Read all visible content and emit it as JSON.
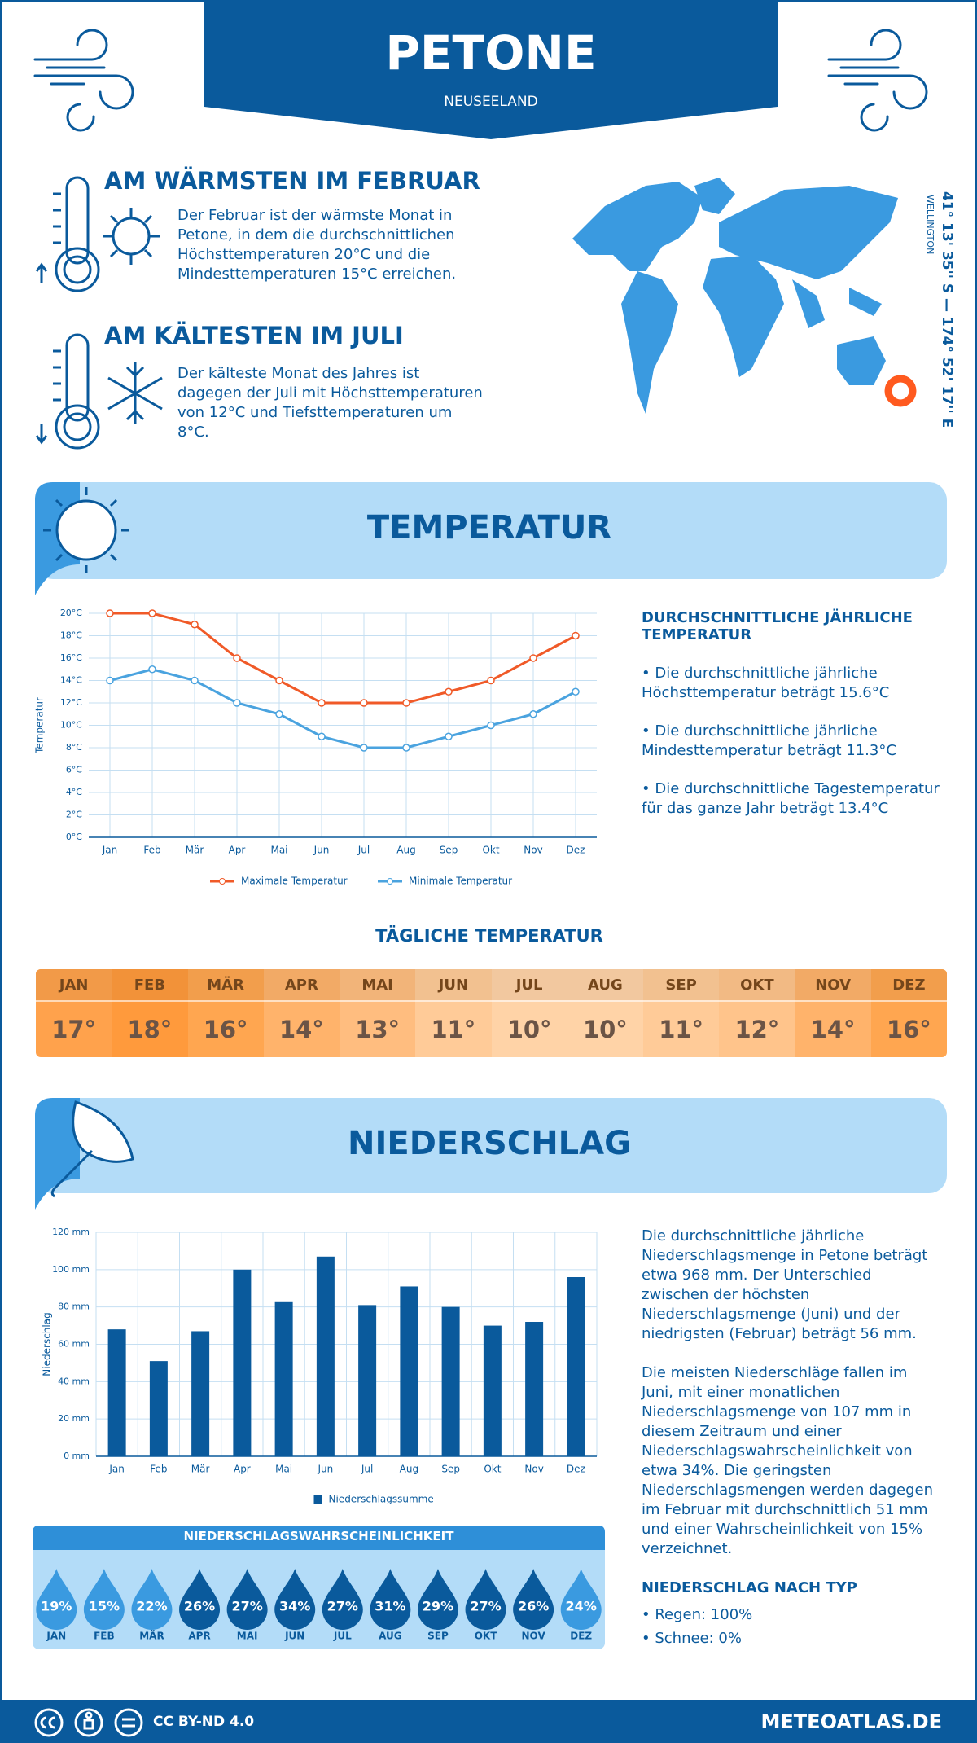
{
  "header": {
    "title": "PETONE",
    "subtitle": "NEUSEELAND"
  },
  "warmest": {
    "title": "AM WÄRMSTEN IM FEBRUAR",
    "text": "Der Februar ist der wärmste Monat in Petone, in dem die durchschnittlichen Höchsttemperaturen 20°C und die Mindesttemperaturen 15°C erreichen."
  },
  "coldest": {
    "title": "AM KÄLTESTEN IM JULI",
    "text": "Der kälteste Monat des Jahres ist dagegen der Juli mit Höchsttemperaturen von 12°C und Tiefsttemperaturen um 8°C."
  },
  "map": {
    "coordinates": "41° 13' 35'' S — 174° 52' 17'' E",
    "region": "WELLINGTON"
  },
  "temperature_section": {
    "title": "TEMPERATUR"
  },
  "chart_data": [
    {
      "type": "line",
      "y_label": "Temperatur",
      "categories": [
        "Jan",
        "Feb",
        "Mär",
        "Apr",
        "Mai",
        "Jun",
        "Jul",
        "Aug",
        "Sep",
        "Okt",
        "Nov",
        "Dez"
      ],
      "series": [
        {
          "name": "Maximale Temperatur",
          "color": "#f05a28",
          "values": [
            20,
            20,
            19,
            16,
            14,
            12,
            12,
            12,
            13,
            14,
            16,
            18
          ]
        },
        {
          "name": "Minimale Temperatur",
          "color": "#4aa3df",
          "values": [
            14,
            15,
            14,
            12,
            11,
            9,
            8,
            8,
            9,
            10,
            11,
            13
          ]
        }
      ],
      "ylim": [
        0,
        20
      ],
      "yticks": [
        {
          "value": 0,
          "label": "0°C"
        },
        {
          "value": 2,
          "label": "2°C"
        },
        {
          "value": 4,
          "label": "4°C"
        },
        {
          "value": 6,
          "label": "6°C"
        },
        {
          "value": 8,
          "label": "8°C"
        },
        {
          "value": 10,
          "label": "10°C"
        },
        {
          "value": 12,
          "label": "12°C"
        },
        {
          "value": 14,
          "label": "14°C"
        },
        {
          "value": 16,
          "label": "16°C"
        },
        {
          "value": 18,
          "label": "18°C"
        },
        {
          "value": 20,
          "label": "20°C"
        }
      ],
      "grid": true
    },
    {
      "type": "bar",
      "y_label": "Niederschlag",
      "categories": [
        "Jan",
        "Feb",
        "Mär",
        "Apr",
        "Mai",
        "Jun",
        "Jul",
        "Aug",
        "Sep",
        "Okt",
        "Nov",
        "Dez"
      ],
      "series": [
        {
          "name": "Niederschlagssumme",
          "color": "#0a5a9c",
          "values": [
            68,
            51,
            67,
            100,
            83,
            107,
            81,
            91,
            80,
            70,
            72,
            96
          ]
        }
      ],
      "ylim": [
        0,
        120
      ],
      "yticks": [
        {
          "value": 0,
          "label": "0 mm"
        },
        {
          "value": 20,
          "label": "20 mm"
        },
        {
          "value": 40,
          "label": "40 mm"
        },
        {
          "value": 60,
          "label": "60 mm"
        },
        {
          "value": 80,
          "label": "80 mm"
        },
        {
          "value": 100,
          "label": "100 mm"
        },
        {
          "value": 120,
          "label": "120 mm"
        }
      ],
      "grid": true
    }
  ],
  "annual": {
    "title": "DURCHSCHNITTLICHE JÄHRLICHE TEMPERATUR",
    "items": [
      "• Die durchschnittliche jährliche Höchsttemperatur beträgt 15.6°C",
      "• Die durchschnittliche jährliche Mindesttemperatur beträgt 11.3°C",
      "• Die durchschnittliche Tagestemperatur für das ganze Jahr beträgt 13.4°C"
    ]
  },
  "daily": {
    "title": "TÄGLICHE TEMPERATUR",
    "months": [
      "JAN",
      "FEB",
      "MÄR",
      "APR",
      "MAI",
      "JUN",
      "JUL",
      "AUG",
      "SEP",
      "OKT",
      "NOV",
      "DEZ"
    ],
    "values": [
      "17°",
      "18°",
      "16°",
      "14°",
      "13°",
      "11°",
      "10°",
      "10°",
      "11°",
      "12°",
      "14°",
      "16°"
    ],
    "colors": [
      "#ffa24c",
      "#ff9a3c",
      "#ffa650",
      "#ffb36b",
      "#ffbd7f",
      "#ffcb98",
      "#ffd3a7",
      "#ffd3a7",
      "#ffcb98",
      "#ffc48b",
      "#ffb36b",
      "#ffa650"
    ]
  },
  "precipitation_section": {
    "title": "NIEDERSCHLAG"
  },
  "precip_text": [
    "Die durchschnittliche jährliche Niederschlagsmenge in Petone beträgt etwa 968 mm. Der Unterschied zwischen der höchsten Niederschlagsmenge (Juni) und der niedrigsten (Februar) beträgt 56 mm.",
    "Die meisten Niederschläge fallen im Juni, mit einer monatlichen Niederschlagsmenge von 107 mm in diesem Zeitraum und einer Niederschlagswahrscheinlichkeit von etwa 34%. Die geringsten Niederschlagsmengen werden dagegen im Februar mit durchschnittlich 51 mm und einer Wahrscheinlichkeit von 15% verzeichnet."
  ],
  "probability": {
    "title": "NIEDERSCHLAGSWAHRSCHEINLICHKEIT",
    "months": [
      "JAN",
      "FEB",
      "MÄR",
      "APR",
      "MAI",
      "JUN",
      "JUL",
      "AUG",
      "SEP",
      "OKT",
      "NOV",
      "DEZ"
    ],
    "values": [
      "19%",
      "15%",
      "22%",
      "26%",
      "27%",
      "34%",
      "27%",
      "31%",
      "29%",
      "27%",
      "26%",
      "24%"
    ],
    "colors": [
      "#3a9ae0",
      "#3a9ae0",
      "#3a9ae0",
      "#0a5a9c",
      "#0a5a9c",
      "#0a5a9c",
      "#0a5a9c",
      "#0a5a9c",
      "#0a5a9c",
      "#0a5a9c",
      "#0a5a9c",
      "#3a9ae0"
    ]
  },
  "by_type": {
    "title": "NIEDERSCHLAG NACH TYP",
    "items": [
      "• Regen: 100%",
      "• Schnee: 0%"
    ]
  },
  "footer": {
    "license": "CC BY-ND 4.0",
    "site": "METEOATLAS.DE"
  }
}
